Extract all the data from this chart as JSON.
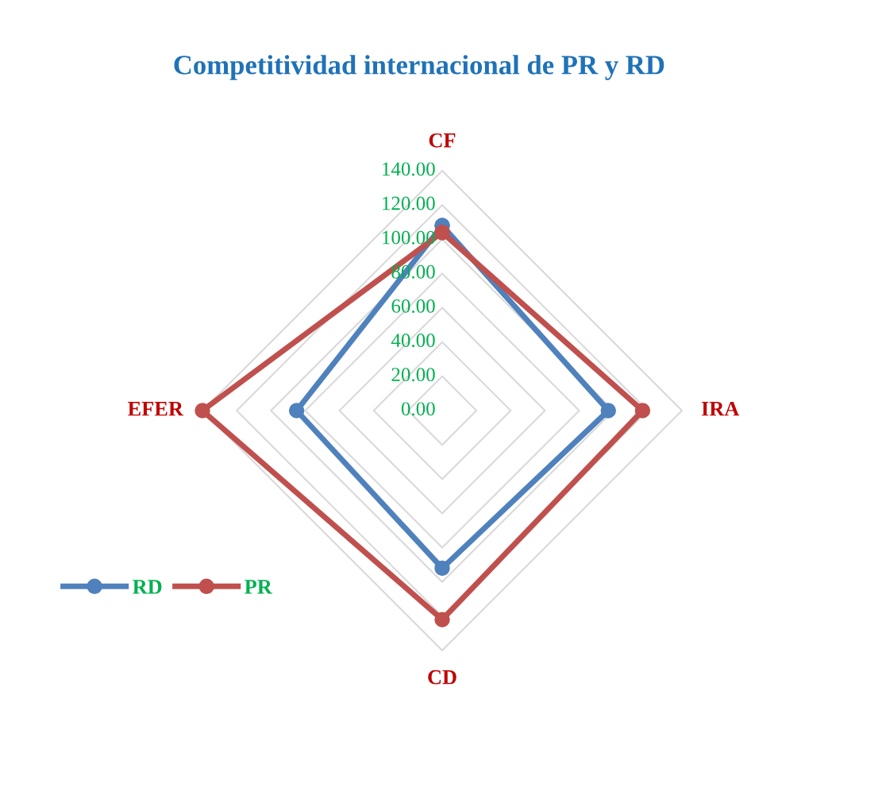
{
  "chart_data": {
    "type": "radar",
    "title": "Competitividad internacional de PR y RD",
    "categories": [
      "CF",
      "IRA",
      "CD",
      "EFER"
    ],
    "series": [
      {
        "name": "RD",
        "color": "#4f81bd",
        "values": [
          108,
          97,
          92,
          85
        ]
      },
      {
        "name": "PR",
        "color": "#c0504d",
        "values": [
          104,
          117,
          122,
          140
        ]
      }
    ],
    "ylim": [
      0,
      140
    ],
    "yticks": [
      {
        "value": 0,
        "label": "0.00"
      },
      {
        "value": 20,
        "label": "20.00"
      },
      {
        "value": 40,
        "label": "40.00"
      },
      {
        "value": 60,
        "label": "60.00"
      },
      {
        "value": 80,
        "label": "80.00"
      },
      {
        "value": 100,
        "label": "100.00"
      },
      {
        "value": 120,
        "label": "120.00"
      },
      {
        "value": 140,
        "label": "140.00"
      }
    ],
    "grid": true,
    "legend": "bottom left",
    "marker": "circle",
    "line_style": "solid"
  }
}
